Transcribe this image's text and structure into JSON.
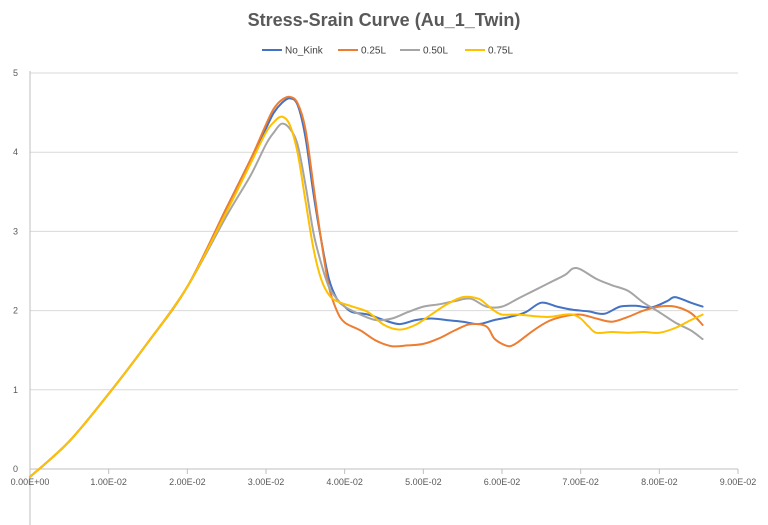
{
  "chart_data": {
    "type": "line",
    "title": "Stress-Srain Curve (Au_1_Twin)",
    "xlabel": "",
    "ylabel": "",
    "xlim": [
      0,
      0.09
    ],
    "ylim": [
      0,
      5
    ],
    "x_ticks": [
      0,
      0.01,
      0.02,
      0.03,
      0.04,
      0.05,
      0.06,
      0.07,
      0.08,
      0.09
    ],
    "x_tick_labels": [
      "0.00E+00",
      "1.00E-02",
      "2.00E-02",
      "3.00E-02",
      "4.00E-02",
      "5.00E-02",
      "6.00E-02",
      "7.00E-02",
      "8.00E-02",
      "9.00E-02"
    ],
    "y_ticks": [
      0,
      1,
      2,
      3,
      4,
      5
    ],
    "y_tick_labels": [
      "0",
      "1",
      "2",
      "3",
      "4",
      "5"
    ],
    "grid": "horizontal",
    "legend_position": "top",
    "series": [
      {
        "name": "No_Kink",
        "color": "#4472C4",
        "points": [
          [
            0,
            -0.1
          ],
          [
            0.005,
            0.35
          ],
          [
            0.01,
            0.95
          ],
          [
            0.015,
            1.6
          ],
          [
            0.02,
            2.3
          ],
          [
            0.025,
            3.3
          ],
          [
            0.028,
            3.9
          ],
          [
            0.03,
            4.3
          ],
          [
            0.031,
            4.5
          ],
          [
            0.032,
            4.62
          ],
          [
            0.033,
            4.68
          ],
          [
            0.034,
            4.6
          ],
          [
            0.035,
            4.2
          ],
          [
            0.036,
            3.5
          ],
          [
            0.037,
            2.9
          ],
          [
            0.038,
            2.4
          ],
          [
            0.039,
            2.15
          ],
          [
            0.04,
            2.05
          ],
          [
            0.041,
            1.98
          ],
          [
            0.043,
            1.95
          ],
          [
            0.045,
            1.88
          ],
          [
            0.047,
            1.83
          ],
          [
            0.049,
            1.88
          ],
          [
            0.051,
            1.9
          ],
          [
            0.053,
            1.88
          ],
          [
            0.055,
            1.86
          ],
          [
            0.057,
            1.83
          ],
          [
            0.059,
            1.88
          ],
          [
            0.061,
            1.92
          ],
          [
            0.063,
            1.98
          ],
          [
            0.065,
            2.1
          ],
          [
            0.067,
            2.05
          ],
          [
            0.069,
            2.01
          ],
          [
            0.071,
            1.99
          ],
          [
            0.073,
            1.96
          ],
          [
            0.075,
            2.05
          ],
          [
            0.077,
            2.06
          ],
          [
            0.079,
            2.04
          ],
          [
            0.081,
            2.12
          ],
          [
            0.082,
            2.17
          ],
          [
            0.084,
            2.1
          ],
          [
            0.0855,
            2.05
          ]
        ]
      },
      {
        "name": "0.25L",
        "color": "#ED7D31",
        "points": [
          [
            0,
            -0.1
          ],
          [
            0.005,
            0.35
          ],
          [
            0.01,
            0.95
          ],
          [
            0.015,
            1.6
          ],
          [
            0.02,
            2.3
          ],
          [
            0.025,
            3.3
          ],
          [
            0.028,
            3.9
          ],
          [
            0.03,
            4.35
          ],
          [
            0.031,
            4.55
          ],
          [
            0.032,
            4.66
          ],
          [
            0.033,
            4.7
          ],
          [
            0.034,
            4.62
          ],
          [
            0.035,
            4.3
          ],
          [
            0.036,
            3.6
          ],
          [
            0.037,
            2.9
          ],
          [
            0.038,
            2.3
          ],
          [
            0.039,
            2.0
          ],
          [
            0.04,
            1.85
          ],
          [
            0.042,
            1.75
          ],
          [
            0.044,
            1.62
          ],
          [
            0.046,
            1.55
          ],
          [
            0.048,
            1.56
          ],
          [
            0.05,
            1.58
          ],
          [
            0.052,
            1.65
          ],
          [
            0.054,
            1.75
          ],
          [
            0.056,
            1.83
          ],
          [
            0.058,
            1.8
          ],
          [
            0.059,
            1.65
          ],
          [
            0.06,
            1.58
          ],
          [
            0.061,
            1.55
          ],
          [
            0.062,
            1.6
          ],
          [
            0.064,
            1.75
          ],
          [
            0.066,
            1.87
          ],
          [
            0.068,
            1.93
          ],
          [
            0.07,
            1.95
          ],
          [
            0.072,
            1.9
          ],
          [
            0.074,
            1.86
          ],
          [
            0.076,
            1.92
          ],
          [
            0.078,
            2.0
          ],
          [
            0.08,
            2.05
          ],
          [
            0.082,
            2.05
          ],
          [
            0.084,
            1.97
          ],
          [
            0.0855,
            1.82
          ]
        ]
      },
      {
        "name": "0.50L",
        "color": "#A5A5A5",
        "points": [
          [
            0,
            -0.1
          ],
          [
            0.005,
            0.35
          ],
          [
            0.01,
            0.95
          ],
          [
            0.015,
            1.6
          ],
          [
            0.02,
            2.3
          ],
          [
            0.025,
            3.2
          ],
          [
            0.028,
            3.7
          ],
          [
            0.03,
            4.1
          ],
          [
            0.031,
            4.25
          ],
          [
            0.032,
            4.36
          ],
          [
            0.033,
            4.3
          ],
          [
            0.034,
            4.1
          ],
          [
            0.035,
            3.6
          ],
          [
            0.036,
            3.0
          ],
          [
            0.037,
            2.6
          ],
          [
            0.038,
            2.3
          ],
          [
            0.039,
            2.15
          ],
          [
            0.04,
            2.05
          ],
          [
            0.042,
            1.95
          ],
          [
            0.044,
            1.88
          ],
          [
            0.046,
            1.9
          ],
          [
            0.048,
            1.98
          ],
          [
            0.05,
            2.05
          ],
          [
            0.052,
            2.08
          ],
          [
            0.054,
            2.12
          ],
          [
            0.056,
            2.15
          ],
          [
            0.058,
            2.05
          ],
          [
            0.06,
            2.05
          ],
          [
            0.062,
            2.15
          ],
          [
            0.064,
            2.25
          ],
          [
            0.066,
            2.35
          ],
          [
            0.068,
            2.45
          ],
          [
            0.069,
            2.53
          ],
          [
            0.07,
            2.52
          ],
          [
            0.072,
            2.4
          ],
          [
            0.074,
            2.32
          ],
          [
            0.076,
            2.25
          ],
          [
            0.078,
            2.1
          ],
          [
            0.08,
            1.98
          ],
          [
            0.082,
            1.85
          ],
          [
            0.084,
            1.75
          ],
          [
            0.0855,
            1.64
          ]
        ]
      },
      {
        "name": "0.75L",
        "color": "#FFC000",
        "points": [
          [
            0,
            -0.1
          ],
          [
            0.005,
            0.35
          ],
          [
            0.01,
            0.95
          ],
          [
            0.015,
            1.6
          ],
          [
            0.02,
            2.3
          ],
          [
            0.025,
            3.25
          ],
          [
            0.028,
            3.85
          ],
          [
            0.03,
            4.25
          ],
          [
            0.031,
            4.38
          ],
          [
            0.032,
            4.45
          ],
          [
            0.033,
            4.35
          ],
          [
            0.034,
            4.0
          ],
          [
            0.035,
            3.4
          ],
          [
            0.036,
            2.8
          ],
          [
            0.037,
            2.4
          ],
          [
            0.038,
            2.2
          ],
          [
            0.039,
            2.12
          ],
          [
            0.041,
            2.05
          ],
          [
            0.043,
            1.98
          ],
          [
            0.045,
            1.82
          ],
          [
            0.047,
            1.76
          ],
          [
            0.049,
            1.82
          ],
          [
            0.051,
            1.95
          ],
          [
            0.053,
            2.08
          ],
          [
            0.055,
            2.17
          ],
          [
            0.057,
            2.15
          ],
          [
            0.058,
            2.08
          ],
          [
            0.059,
            2.0
          ],
          [
            0.06,
            1.95
          ],
          [
            0.062,
            1.95
          ],
          [
            0.064,
            1.93
          ],
          [
            0.066,
            1.92
          ],
          [
            0.068,
            1.95
          ],
          [
            0.069,
            1.95
          ],
          [
            0.07,
            1.9
          ],
          [
            0.071,
            1.8
          ],
          [
            0.072,
            1.72
          ],
          [
            0.074,
            1.73
          ],
          [
            0.076,
            1.72
          ],
          [
            0.078,
            1.73
          ],
          [
            0.08,
            1.72
          ],
          [
            0.082,
            1.78
          ],
          [
            0.084,
            1.88
          ],
          [
            0.0855,
            1.95
          ]
        ]
      }
    ]
  }
}
